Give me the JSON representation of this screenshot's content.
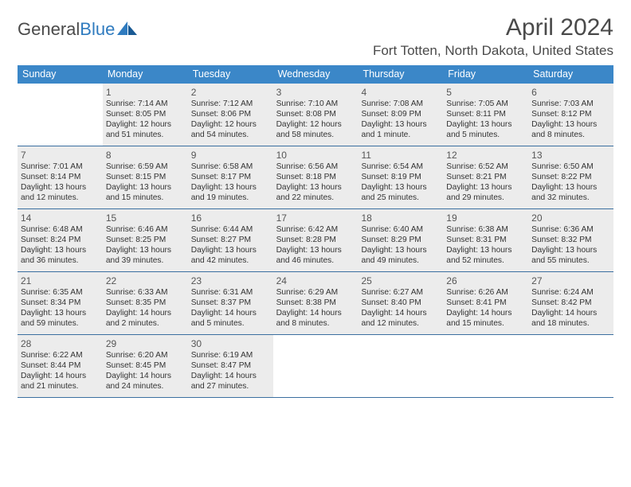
{
  "brand": {
    "word1": "General",
    "word2": "Blue"
  },
  "title": "April 2024",
  "location": "Fort Totten, North Dakota, United States",
  "colors": {
    "header_bg": "#3b87c8",
    "header_text": "#ffffff",
    "row_border": "#3b6fa0",
    "shaded_bg": "#ececec",
    "text": "#333333",
    "logo_gray": "#4a4a4a",
    "logo_blue": "#2f7bbf"
  },
  "weekdays": [
    "Sunday",
    "Monday",
    "Tuesday",
    "Wednesday",
    "Thursday",
    "Friday",
    "Saturday"
  ],
  "weeks": [
    [
      {
        "num": "",
        "lines": []
      },
      {
        "num": "1",
        "lines": [
          "Sunrise: 7:14 AM",
          "Sunset: 8:05 PM",
          "Daylight: 12 hours",
          "and 51 minutes."
        ]
      },
      {
        "num": "2",
        "lines": [
          "Sunrise: 7:12 AM",
          "Sunset: 8:06 PM",
          "Daylight: 12 hours",
          "and 54 minutes."
        ]
      },
      {
        "num": "3",
        "lines": [
          "Sunrise: 7:10 AM",
          "Sunset: 8:08 PM",
          "Daylight: 12 hours",
          "and 58 minutes."
        ]
      },
      {
        "num": "4",
        "lines": [
          "Sunrise: 7:08 AM",
          "Sunset: 8:09 PM",
          "Daylight: 13 hours",
          "and 1 minute."
        ]
      },
      {
        "num": "5",
        "lines": [
          "Sunrise: 7:05 AM",
          "Sunset: 8:11 PM",
          "Daylight: 13 hours",
          "and 5 minutes."
        ]
      },
      {
        "num": "6",
        "lines": [
          "Sunrise: 7:03 AM",
          "Sunset: 8:12 PM",
          "Daylight: 13 hours",
          "and 8 minutes."
        ]
      }
    ],
    [
      {
        "num": "7",
        "lines": [
          "Sunrise: 7:01 AM",
          "Sunset: 8:14 PM",
          "Daylight: 13 hours",
          "and 12 minutes."
        ]
      },
      {
        "num": "8",
        "lines": [
          "Sunrise: 6:59 AM",
          "Sunset: 8:15 PM",
          "Daylight: 13 hours",
          "and 15 minutes."
        ]
      },
      {
        "num": "9",
        "lines": [
          "Sunrise: 6:58 AM",
          "Sunset: 8:17 PM",
          "Daylight: 13 hours",
          "and 19 minutes."
        ]
      },
      {
        "num": "10",
        "lines": [
          "Sunrise: 6:56 AM",
          "Sunset: 8:18 PM",
          "Daylight: 13 hours",
          "and 22 minutes."
        ]
      },
      {
        "num": "11",
        "lines": [
          "Sunrise: 6:54 AM",
          "Sunset: 8:19 PM",
          "Daylight: 13 hours",
          "and 25 minutes."
        ]
      },
      {
        "num": "12",
        "lines": [
          "Sunrise: 6:52 AM",
          "Sunset: 8:21 PM",
          "Daylight: 13 hours",
          "and 29 minutes."
        ]
      },
      {
        "num": "13",
        "lines": [
          "Sunrise: 6:50 AM",
          "Sunset: 8:22 PM",
          "Daylight: 13 hours",
          "and 32 minutes."
        ]
      }
    ],
    [
      {
        "num": "14",
        "lines": [
          "Sunrise: 6:48 AM",
          "Sunset: 8:24 PM",
          "Daylight: 13 hours",
          "and 36 minutes."
        ]
      },
      {
        "num": "15",
        "lines": [
          "Sunrise: 6:46 AM",
          "Sunset: 8:25 PM",
          "Daylight: 13 hours",
          "and 39 minutes."
        ]
      },
      {
        "num": "16",
        "lines": [
          "Sunrise: 6:44 AM",
          "Sunset: 8:27 PM",
          "Daylight: 13 hours",
          "and 42 minutes."
        ]
      },
      {
        "num": "17",
        "lines": [
          "Sunrise: 6:42 AM",
          "Sunset: 8:28 PM",
          "Daylight: 13 hours",
          "and 46 minutes."
        ]
      },
      {
        "num": "18",
        "lines": [
          "Sunrise: 6:40 AM",
          "Sunset: 8:29 PM",
          "Daylight: 13 hours",
          "and 49 minutes."
        ]
      },
      {
        "num": "19",
        "lines": [
          "Sunrise: 6:38 AM",
          "Sunset: 8:31 PM",
          "Daylight: 13 hours",
          "and 52 minutes."
        ]
      },
      {
        "num": "20",
        "lines": [
          "Sunrise: 6:36 AM",
          "Sunset: 8:32 PM",
          "Daylight: 13 hours",
          "and 55 minutes."
        ]
      }
    ],
    [
      {
        "num": "21",
        "lines": [
          "Sunrise: 6:35 AM",
          "Sunset: 8:34 PM",
          "Daylight: 13 hours",
          "and 59 minutes."
        ]
      },
      {
        "num": "22",
        "lines": [
          "Sunrise: 6:33 AM",
          "Sunset: 8:35 PM",
          "Daylight: 14 hours",
          "and 2 minutes."
        ]
      },
      {
        "num": "23",
        "lines": [
          "Sunrise: 6:31 AM",
          "Sunset: 8:37 PM",
          "Daylight: 14 hours",
          "and 5 minutes."
        ]
      },
      {
        "num": "24",
        "lines": [
          "Sunrise: 6:29 AM",
          "Sunset: 8:38 PM",
          "Daylight: 14 hours",
          "and 8 minutes."
        ]
      },
      {
        "num": "25",
        "lines": [
          "Sunrise: 6:27 AM",
          "Sunset: 8:40 PM",
          "Daylight: 14 hours",
          "and 12 minutes."
        ]
      },
      {
        "num": "26",
        "lines": [
          "Sunrise: 6:26 AM",
          "Sunset: 8:41 PM",
          "Daylight: 14 hours",
          "and 15 minutes."
        ]
      },
      {
        "num": "27",
        "lines": [
          "Sunrise: 6:24 AM",
          "Sunset: 8:42 PM",
          "Daylight: 14 hours",
          "and 18 minutes."
        ]
      }
    ],
    [
      {
        "num": "28",
        "lines": [
          "Sunrise: 6:22 AM",
          "Sunset: 8:44 PM",
          "Daylight: 14 hours",
          "and 21 minutes."
        ]
      },
      {
        "num": "29",
        "lines": [
          "Sunrise: 6:20 AM",
          "Sunset: 8:45 PM",
          "Daylight: 14 hours",
          "and 24 minutes."
        ]
      },
      {
        "num": "30",
        "lines": [
          "Sunrise: 6:19 AM",
          "Sunset: 8:47 PM",
          "Daylight: 14 hours",
          "and 27 minutes."
        ]
      },
      {
        "num": "",
        "lines": []
      },
      {
        "num": "",
        "lines": []
      },
      {
        "num": "",
        "lines": []
      },
      {
        "num": "",
        "lines": []
      }
    ]
  ]
}
